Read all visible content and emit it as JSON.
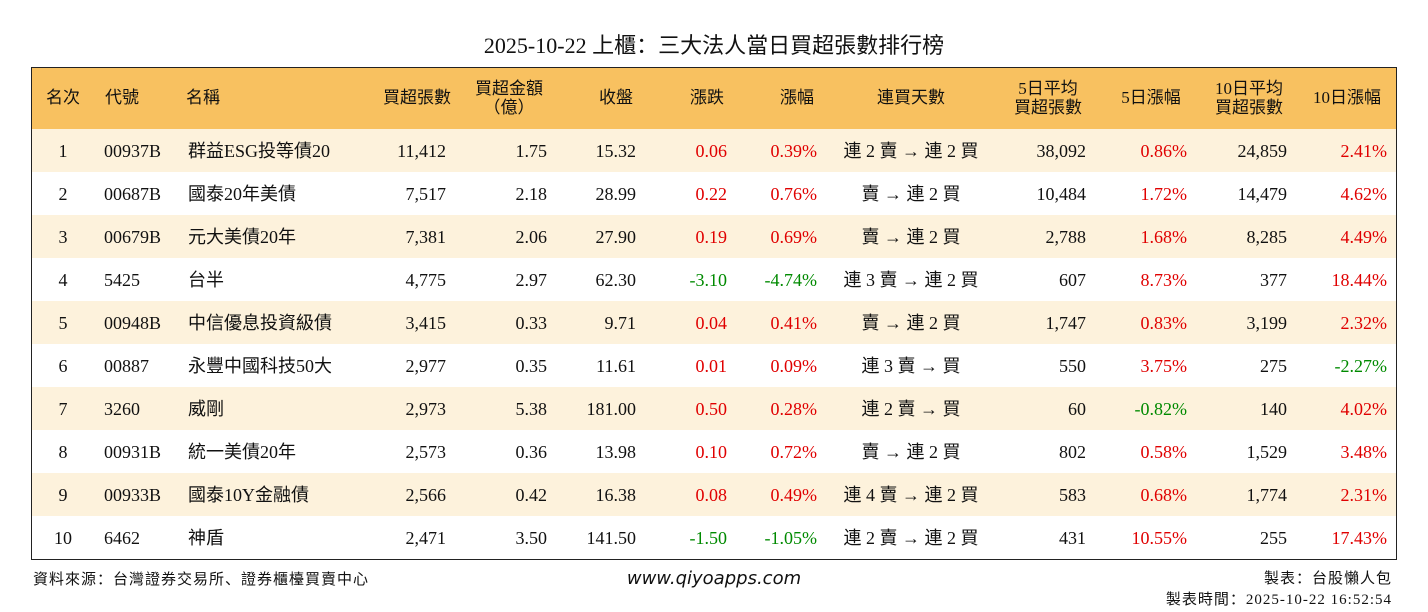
{
  "title": "2025-10-22 上櫃：三大法人當日買超張數排行榜",
  "table": {
    "headers": [
      [
        "名次"
      ],
      [
        "代號"
      ],
      [
        "名稱"
      ],
      [
        "買超張數"
      ],
      [
        "買超金額",
        "（億）"
      ],
      [
        "收盤"
      ],
      [
        "漲跌"
      ],
      [
        "漲幅"
      ],
      [
        "連買天數"
      ],
      [
        "5日平均",
        "買超張數"
      ],
      [
        "5日漲幅"
      ],
      [
        "10日平均",
        "買超張數"
      ],
      [
        "10日漲幅"
      ]
    ],
    "rows": [
      [
        "1",
        "00937B",
        "群益ESG投等債20",
        "11,412",
        "1.75",
        "15.32",
        "0.06",
        "0.39%",
        "連 2 賣 → 連 2 買",
        "38,092",
        "0.86%",
        "24,859",
        "2.41%"
      ],
      [
        "2",
        "00687B",
        "國泰20年美債",
        "7,517",
        "2.18",
        "28.99",
        "0.22",
        "0.76%",
        "賣 → 連 2 買",
        "10,484",
        "1.72%",
        "14,479",
        "4.62%"
      ],
      [
        "3",
        "00679B",
        "元大美債20年",
        "7,381",
        "2.06",
        "27.90",
        "0.19",
        "0.69%",
        "賣 → 連 2 買",
        "2,788",
        "1.68%",
        "8,285",
        "4.49%"
      ],
      [
        "4",
        "5425",
        "台半",
        "4,775",
        "2.97",
        "62.30",
        "-3.10",
        "-4.74%",
        "連 3 賣 → 連 2 買",
        "607",
        "8.73%",
        "377",
        "18.44%"
      ],
      [
        "5",
        "00948B",
        "中信優息投資級債",
        "3,415",
        "0.33",
        "9.71",
        "0.04",
        "0.41%",
        "賣 → 連 2 買",
        "1,747",
        "0.83%",
        "3,199",
        "2.32%"
      ],
      [
        "6",
        "00887",
        "永豐中國科技50大",
        "2,977",
        "0.35",
        "11.61",
        "0.01",
        "0.09%",
        "連 3 賣 → 買",
        "550",
        "3.75%",
        "275",
        "-2.27%"
      ],
      [
        "7",
        "3260",
        "威剛",
        "2,973",
        "5.38",
        "181.00",
        "0.50",
        "0.28%",
        "連 2 賣 → 買",
        "60",
        "-0.82%",
        "140",
        "4.02%"
      ],
      [
        "8",
        "00931B",
        "統一美債20年",
        "2,573",
        "0.36",
        "13.98",
        "0.10",
        "0.72%",
        "賣 → 連 2 買",
        "802",
        "0.58%",
        "1,529",
        "3.48%"
      ],
      [
        "9",
        "00933B",
        "國泰10Y金融債",
        "2,566",
        "0.42",
        "16.38",
        "0.08",
        "0.49%",
        "連 4 賣 → 連 2 買",
        "583",
        "0.68%",
        "1,774",
        "2.31%"
      ],
      [
        "10",
        "6462",
        "神盾",
        "2,471",
        "3.50",
        "141.50",
        "-1.50",
        "-1.05%",
        "連 2 賣 → 連 2 買",
        "431",
        "10.55%",
        "255",
        "17.43%"
      ]
    ]
  },
  "footer": {
    "source": "資料來源：台灣證券交易所、證券櫃檯買賣中心",
    "website": "www.qiyoapps.com",
    "maker": "製表：台股懶人包",
    "time": "製表時間：2025-10-22 16:52:54"
  }
}
